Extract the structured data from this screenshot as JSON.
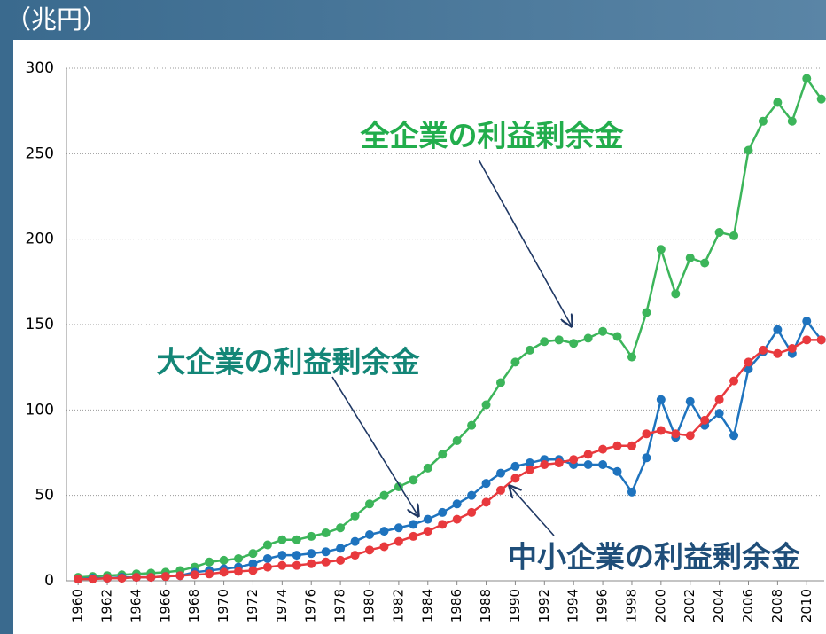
{
  "chart_data": {
    "type": "line",
    "y_unit_label": "（兆円）",
    "x": [
      1960,
      1961,
      1962,
      1963,
      1964,
      1965,
      1966,
      1967,
      1968,
      1969,
      1970,
      1971,
      1972,
      1973,
      1974,
      1975,
      1976,
      1977,
      1978,
      1979,
      1980,
      1981,
      1982,
      1983,
      1984,
      1985,
      1986,
      1987,
      1988,
      1989,
      1990,
      1991,
      1992,
      1993,
      1994,
      1995,
      1996,
      1997,
      1998,
      1999,
      2000,
      2001,
      2002,
      2003,
      2004,
      2005,
      2006,
      2007,
      2008,
      2009,
      2010,
      2011
    ],
    "xlim": [
      1959.2,
      2011.2
    ],
    "xticks": [
      1960,
      1962,
      1964,
      1966,
      1968,
      1970,
      1972,
      1974,
      1976,
      1978,
      1980,
      1982,
      1984,
      1986,
      1988,
      1990,
      1992,
      1994,
      1996,
      1998,
      2000,
      2002,
      2004,
      2006,
      2008,
      2010
    ],
    "ylim": [
      0,
      300
    ],
    "yticks": [
      0,
      50,
      100,
      150,
      200,
      250,
      300
    ],
    "grid": true,
    "series": [
      {
        "name": "全企業の利益剰余金",
        "color": "#3cb55a",
        "label_color": "#22ad4c",
        "values": [
          2,
          2.5,
          3,
          3.5,
          4,
          4.5,
          5,
          6,
          8,
          11,
          12,
          13,
          16,
          21,
          24,
          24,
          26,
          28,
          31,
          38,
          45,
          50,
          55,
          59,
          66,
          74,
          82,
          91,
          103,
          116,
          128,
          135,
          140,
          141,
          139,
          142,
          146,
          143,
          131,
          157,
          194,
          168,
          189,
          186,
          204,
          202,
          252,
          269,
          280,
          269,
          294,
          282
        ]
      },
      {
        "name": "大企業の利益剰余金",
        "color": "#1e73be",
        "label_color": "#138677",
        "values": [
          1,
          1.5,
          1.5,
          2,
          2,
          2,
          2.5,
          3,
          5,
          6,
          7,
          8,
          10,
          13,
          15,
          15,
          16,
          17,
          19,
          23,
          27,
          29,
          31,
          33,
          36,
          40,
          45,
          50,
          57,
          63,
          67,
          69,
          71,
          71,
          68,
          68,
          68,
          64,
          52,
          72,
          106,
          84,
          105,
          91,
          98,
          85,
          124,
          134,
          147,
          133,
          152,
          141
        ]
      },
      {
        "name": "中小企業の利益剰余金",
        "color": "#e8393d",
        "label_color": "#1f4e79",
        "values": [
          1,
          1,
          1.5,
          1.5,
          2,
          2,
          2.5,
          3,
          3.5,
          4,
          5,
          5.5,
          6,
          8,
          9,
          9,
          10,
          11,
          12,
          15,
          18,
          20,
          23,
          26,
          29,
          33,
          36,
          40,
          46,
          53,
          60,
          65,
          68,
          69,
          71,
          74,
          77,
          79,
          79,
          86,
          88,
          86,
          85,
          94,
          106,
          117,
          128,
          135,
          133,
          136,
          141,
          141
        ]
      }
    ]
  }
}
